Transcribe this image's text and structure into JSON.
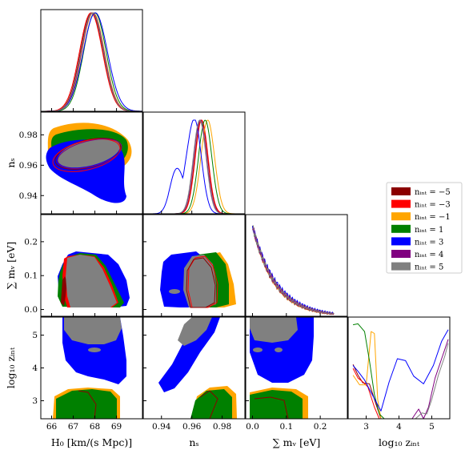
{
  "chart_data": {
    "type": "corner-plot",
    "parameters": [
      {
        "key": "H0",
        "label": "H₀ [km/(s Mpc)]",
        "range": [
          65.5,
          70.2
        ],
        "ticks": [
          66,
          67,
          68,
          69
        ]
      },
      {
        "key": "ns",
        "label": "nₛ",
        "range": [
          0.928,
          0.995
        ],
        "ticks": [
          0.94,
          0.96,
          0.98
        ]
      },
      {
        "key": "mnu",
        "label": "∑ mᵥ [eV]",
        "range": [
          -0.02,
          0.28
        ],
        "ticks": [
          0.0,
          0.1,
          0.2
        ]
      },
      {
        "key": "logz",
        "label": "log₁₀ zᵢₙₜ",
        "range": [
          2.45,
          5.55
        ],
        "ticks": [
          3,
          4,
          5
        ]
      }
    ],
    "tick_labels": {
      "H0": [
        "66",
        "67",
        "68",
        "69"
      ],
      "ns": [
        "0.94",
        "0.96",
        "0.98"
      ],
      "mnu": [
        "0.0",
        "0.1",
        "0.2"
      ],
      "logz": [
        "3",
        "4",
        "5"
      ]
    },
    "axis_labels": {
      "x": [
        "H₀ [km/(s Mpc)]",
        "nₛ",
        "∑ mᵥ [eV]",
        "log₁₀ zᵢₙₜ"
      ],
      "y": [
        "nₛ",
        "∑ mᵥ [eV]",
        "log₁₀ zᵢₙₜ"
      ]
    },
    "legend": {
      "placement": "right",
      "entries": [
        "nᵢₙₜ = −5",
        "nᵢₙₜ = −3",
        "nᵢₙₜ = −1",
        "nᵢₙₜ = 1",
        "nᵢₙₜ = 3",
        "nᵢₙₜ = 4",
        "nᵢₙₜ = 5"
      ]
    },
    "series": [
      {
        "n_int": -5,
        "color": "#8b0000",
        "H0": {
          "mean": 67.85,
          "sigma": 0.52
        },
        "ns": {
          "mean": 0.9662,
          "sigma": 0.0042
        },
        "mnu_decay": 0.068
      },
      {
        "n_int": -3,
        "color": "#ff0000",
        "H0": {
          "mean": 67.82,
          "sigma": 0.53
        },
        "ns": {
          "mean": 0.9665,
          "sigma": 0.0042
        },
        "mnu_decay": 0.07
      },
      {
        "n_int": -1,
        "color": "#ffa500",
        "H0": {
          "mean": 67.92,
          "sigma": 0.52
        },
        "ns": {
          "mean": 0.9705,
          "sigma": 0.0045
        },
        "mnu_decay": 0.068
      },
      {
        "n_int": 1,
        "color": "#008000",
        "H0": {
          "mean": 68.0,
          "sigma": 0.52
        },
        "ns": {
          "mean": 0.9688,
          "sigma": 0.0044
        },
        "mnu_decay": 0.07
      },
      {
        "n_int": 3,
        "color": "#0000ff",
        "H0": {
          "mean": 68.02,
          "sigma": 0.56
        },
        "ns": {
          "mean": 0.9618,
          "sigma": 0.0045
        },
        "mnu_decay": 0.075
      },
      {
        "n_int": 4,
        "color": "#800080",
        "H0": {
          "mean": 67.9,
          "sigma": 0.52
        },
        "ns": {
          "mean": 0.9655,
          "sigma": 0.0042
        },
        "mnu_decay": 0.07
      },
      {
        "n_int": 5,
        "color": "#808080",
        "H0": {
          "mean": 67.88,
          "sigma": 0.52
        },
        "ns": {
          "mean": 0.9652,
          "sigma": 0.0042
        },
        "mnu_decay": 0.07
      }
    ],
    "blue_secondary_ns_mode": {
      "mean": 0.9495,
      "sigma": 0.004,
      "relative_height": 0.45
    },
    "logz_profiles": [
      {
        "color": "#8b0000",
        "x": [
          2.6,
          2.75,
          2.9,
          3.1,
          3.3,
          3.45,
          3.6
        ],
        "y": [
          0.56,
          0.45,
          0.37,
          0.36,
          0.15,
          0.0,
          0.0
        ]
      },
      {
        "color": "#ff0000",
        "x": [
          2.6,
          2.75,
          2.9,
          3.05,
          3.25,
          3.4,
          3.55
        ],
        "y": [
          0.52,
          0.42,
          0.38,
          0.33,
          0.12,
          0.0,
          0.0
        ]
      },
      {
        "color": "#ffa500",
        "x": [
          2.6,
          2.8,
          3.0,
          3.15,
          3.25,
          3.35,
          3.45,
          3.55
        ],
        "y": [
          0.45,
          0.35,
          0.35,
          0.9,
          0.88,
          0.2,
          0.0,
          0.0
        ]
      },
      {
        "color": "#008000",
        "x": [
          2.6,
          2.75,
          2.95,
          3.1,
          3.25,
          3.4,
          3.55
        ],
        "y": [
          0.97,
          0.98,
          0.9,
          0.6,
          0.25,
          0.05,
          0.0
        ]
      },
      {
        "color": "#0000ff",
        "x": [
          2.6,
          2.75,
          2.95,
          3.2,
          3.45,
          3.7,
          3.95,
          4.2,
          4.45,
          4.75,
          5.05,
          5.3,
          5.5
        ],
        "y": [
          0.55,
          0.49,
          0.4,
          0.24,
          0.08,
          0.38,
          0.62,
          0.6,
          0.44,
          0.36,
          0.55,
          0.8,
          0.92
        ]
      },
      {
        "color": "#800080",
        "x": [
          2.6,
          3.6,
          4.4,
          4.6,
          4.75,
          4.9,
          5.1,
          5.3,
          5.5
        ],
        "y": [
          0.0,
          0.0,
          0.0,
          0.1,
          0.0,
          0.12,
          0.42,
          0.62,
          0.82
        ]
      },
      {
        "color": "#808080",
        "x": [
          2.6,
          3.6,
          4.5,
          4.7,
          4.85,
          5.0,
          5.2,
          5.4,
          5.5
        ],
        "y": [
          0.0,
          0.0,
          0.0,
          0.06,
          0.05,
          0.2,
          0.45,
          0.65,
          0.78
        ]
      }
    ]
  }
}
